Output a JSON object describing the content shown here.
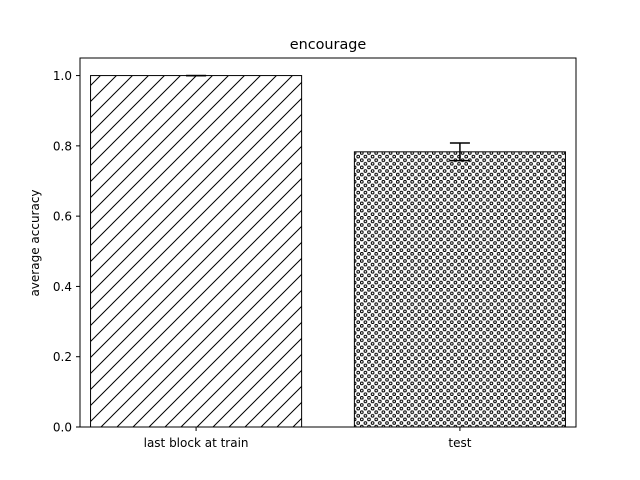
{
  "chart_data": {
    "type": "bar",
    "title": "encourage",
    "xlabel": "",
    "ylabel": "average accuracy",
    "categories": [
      "last block at train",
      "test"
    ],
    "values": [
      1.0,
      0.783
    ],
    "errors": [
      0.0,
      0.025
    ],
    "ylim": [
      0,
      1.05
    ],
    "yticks": [
      "0.0",
      "0.2",
      "0.4",
      "0.6",
      "0.8",
      "1.0"
    ],
    "hatches": [
      "diagonal-lines",
      "small-circles"
    ],
    "bar_fill": "#ffffff",
    "bar_edge": "#000000",
    "grid": false,
    "legend": "none"
  }
}
